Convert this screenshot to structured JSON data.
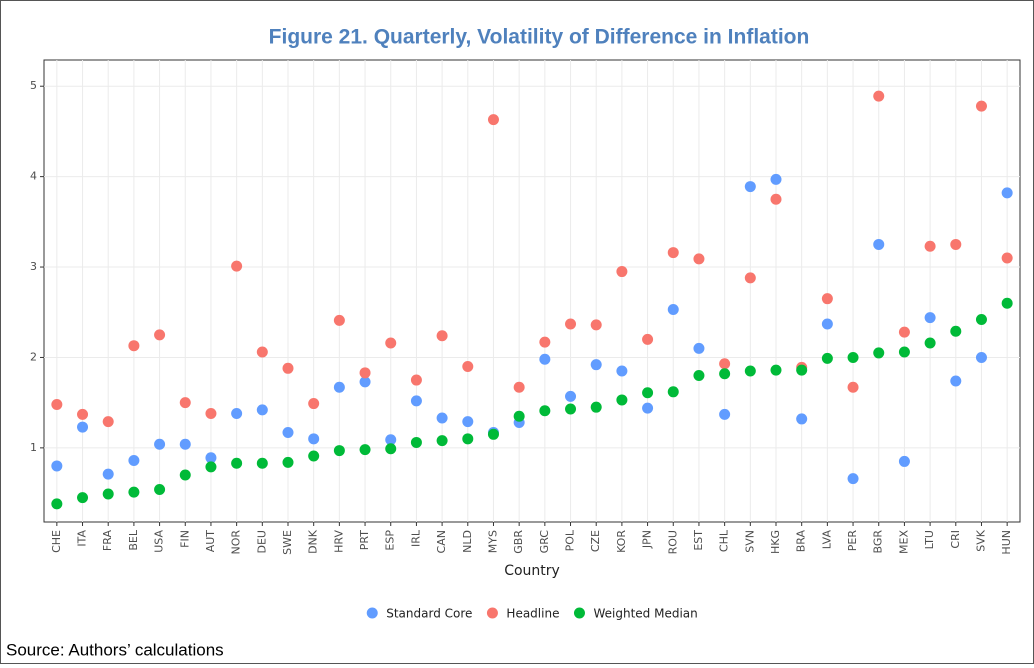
{
  "chart_data": {
    "type": "scatter",
    "title": "Figure 21. Quarterly, Volatility of Difference in Inflation",
    "x_label": "Country",
    "source": "Source: Authors’ calculations",
    "categories": [
      "CHE",
      "ITA",
      "FRA",
      "BEL",
      "USA",
      "FIN",
      "AUT",
      "NOR",
      "DEU",
      "SWE",
      "DNK",
      "HRV",
      "PRT",
      "ESP",
      "IRL",
      "CAN",
      "NLD",
      "MYS",
      "GBR",
      "GRC",
      "POL",
      "CZE",
      "KOR",
      "JPN",
      "ROU",
      "EST",
      "CHL",
      "SVN",
      "HKG",
      "BRA",
      "LVA",
      "PER",
      "BGR",
      "MEX",
      "LTU",
      "CRI",
      "SVK",
      "HUN"
    ],
    "series": [
      {
        "name": "Standard Core",
        "color": "#619CFF",
        "values": [
          0.8,
          1.23,
          0.71,
          0.86,
          1.04,
          1.04,
          0.89,
          1.38,
          1.42,
          1.17,
          1.1,
          1.67,
          1.73,
          1.09,
          1.52,
          1.33,
          1.29,
          1.17,
          1.28,
          1.98,
          1.57,
          1.92,
          1.85,
          1.44,
          2.53,
          2.1,
          1.37,
          3.89,
          3.97,
          1.32,
          2.37,
          0.66,
          3.25,
          0.85,
          2.44,
          1.74,
          2.0,
          3.82
        ]
      },
      {
        "name": "Headline",
        "color": "#F8766D",
        "values": [
          1.48,
          1.37,
          1.29,
          2.13,
          2.25,
          1.5,
          1.38,
          3.01,
          2.06,
          1.88,
          1.49,
          2.41,
          1.83,
          2.16,
          1.75,
          2.24,
          1.9,
          4.63,
          1.67,
          2.17,
          2.37,
          2.36,
          2.95,
          2.2,
          3.16,
          3.09,
          1.93,
          2.88,
          3.75,
          1.89,
          2.65,
          1.67,
          4.89,
          2.28,
          3.23,
          3.25,
          4.78,
          3.1
        ]
      },
      {
        "name": "Weighted Median",
        "color": "#00BA38",
        "values": [
          0.38,
          0.45,
          0.49,
          0.51,
          0.54,
          0.7,
          0.79,
          0.83,
          0.83,
          0.84,
          0.91,
          0.97,
          0.98,
          0.99,
          1.06,
          1.08,
          1.1,
          1.15,
          1.35,
          1.41,
          1.43,
          1.45,
          1.53,
          1.61,
          1.62,
          1.8,
          1.82,
          1.85,
          1.86,
          1.86,
          1.99,
          2.0,
          2.05,
          2.06,
          2.16,
          2.29,
          2.42,
          2.6
        ]
      }
    ],
    "ylim": [
      0.18,
      5.29
    ],
    "yticks": [
      1,
      2,
      3,
      4,
      5
    ],
    "grid": true
  }
}
